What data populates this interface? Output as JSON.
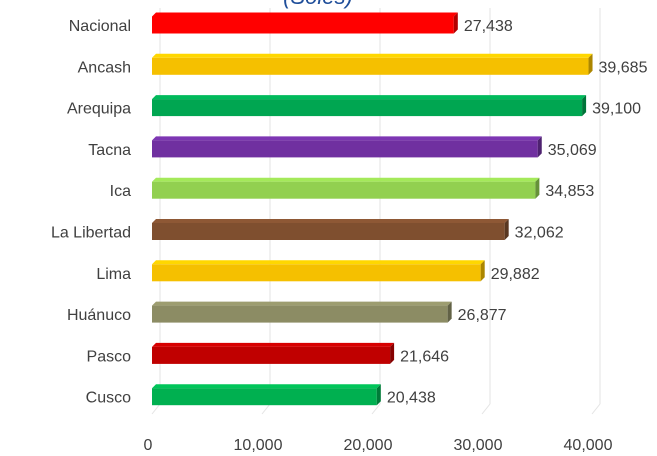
{
  "chart_data": {
    "type": "bar",
    "orientation": "horizontal",
    "title_fragment": "(Soles)",
    "categories": [
      "Nacional",
      "Ancash",
      "Arequipa",
      "Tacna",
      "Ica",
      "La Libertad",
      "Lima",
      "Huánuco",
      "Pasco",
      "Cusco"
    ],
    "values": [
      27438,
      39685,
      39100,
      35069,
      34853,
      32062,
      29882,
      26877,
      21646,
      20438
    ],
    "value_labels": [
      "27,438",
      "39,685",
      "39,100",
      "35,069",
      "34,853",
      "32,062",
      "29,882",
      "26,877",
      "21,646",
      "20,438"
    ],
    "bar_colors": [
      "#ff0000",
      "#f5c000",
      "#00a651",
      "#7030a0",
      "#92d050",
      "#7f4f2f",
      "#f5c000",
      "#8c8c64",
      "#c00000",
      "#00b050"
    ],
    "xlim": [
      0,
      40000
    ],
    "x_ticks": [
      0,
      10000,
      20000,
      30000,
      40000
    ],
    "x_tick_labels": [
      "0",
      "10,000",
      "20,000",
      "30,000",
      "40,000"
    ],
    "grid": "vertical",
    "legend": "none"
  }
}
